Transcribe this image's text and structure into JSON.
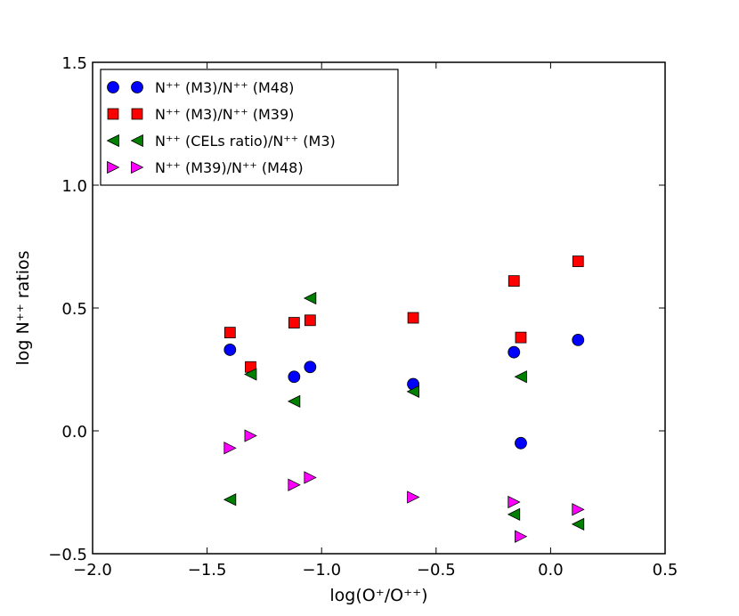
{
  "chart_data": {
    "type": "scatter",
    "title": "",
    "xlabel": "log(O⁺/O⁺⁺)",
    "ylabel": "log N⁺⁺  ratios",
    "xlim": [
      -2.0,
      0.5
    ],
    "ylim": [
      -0.5,
      1.5
    ],
    "xticks": [
      -2.0,
      -1.5,
      -1.0,
      -0.5,
      0.0,
      0.5
    ],
    "xtick_labels": [
      "−2.0",
      "−1.5",
      "−1.0",
      "−0.5",
      "0.0",
      "0.5"
    ],
    "yticks": [
      -0.5,
      0.0,
      0.5,
      1.0,
      1.5
    ],
    "ytick_labels": [
      "−0.5",
      "0.0",
      "0.5",
      "1.0",
      "1.5"
    ],
    "grid": false,
    "legend": "upper-left",
    "series": [
      {
        "name": "N⁺⁺ (M3)/N⁺⁺ (M48)",
        "marker": "circle",
        "color": "#0000ff",
        "points": [
          [
            -1.4,
            0.33
          ],
          [
            -1.12,
            0.22
          ],
          [
            -1.05,
            0.26
          ],
          [
            -0.6,
            0.19
          ],
          [
            -0.16,
            0.32
          ],
          [
            -0.13,
            -0.05
          ],
          [
            0.12,
            0.37
          ]
        ]
      },
      {
        "name": "N⁺⁺ (M3)/N⁺⁺ (M39)",
        "marker": "square",
        "color": "#ff0000",
        "points": [
          [
            -1.4,
            0.4
          ],
          [
            -1.31,
            0.26
          ],
          [
            -1.12,
            0.44
          ],
          [
            -1.05,
            0.45
          ],
          [
            -0.6,
            0.46
          ],
          [
            -0.16,
            0.61
          ],
          [
            -0.13,
            0.38
          ],
          [
            0.12,
            0.69
          ]
        ]
      },
      {
        "name": "N⁺⁺ (CELs ratio)/N⁺⁺ (M3)",
        "marker": "triangle-left",
        "color": "#008000",
        "points": [
          [
            -1.4,
            -0.28
          ],
          [
            -1.31,
            0.23
          ],
          [
            -1.12,
            0.12
          ],
          [
            -1.05,
            0.54
          ],
          [
            -0.6,
            0.16
          ],
          [
            -0.16,
            -0.34
          ],
          [
            -0.13,
            0.22
          ],
          [
            0.12,
            -0.38
          ]
        ]
      },
      {
        "name": "N⁺⁺ (M39)/N⁺⁺ (M48)",
        "marker": "triangle-right",
        "color": "#ff00ff",
        "points": [
          [
            -1.4,
            -0.07
          ],
          [
            -1.31,
            -0.02
          ],
          [
            -1.12,
            -0.22
          ],
          [
            -1.05,
            -0.19
          ],
          [
            -0.6,
            -0.27
          ],
          [
            -0.16,
            -0.29
          ],
          [
            -0.13,
            -0.43
          ],
          [
            0.12,
            -0.32
          ]
        ]
      }
    ]
  }
}
